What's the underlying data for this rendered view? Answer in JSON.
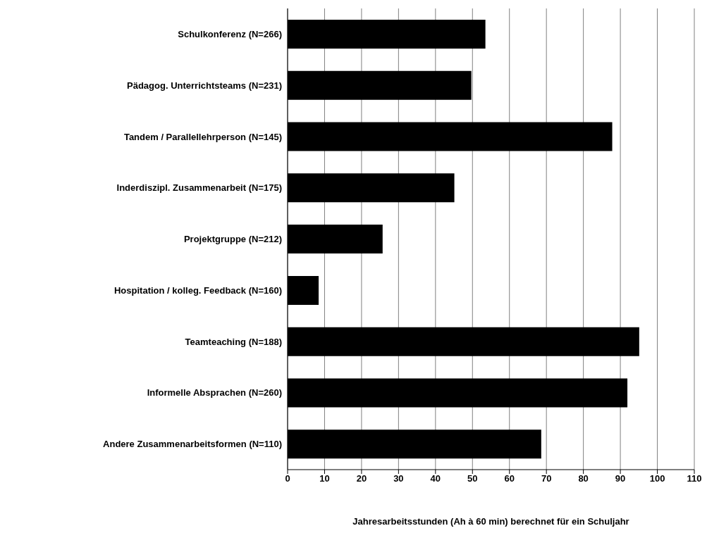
{
  "chart_data": {
    "type": "bar",
    "orientation": "horizontal",
    "xlabel": "Jahresarbeitsstunden (Ah à 60 min) berechnet für ein Schuljahr",
    "categories": [
      "Schulkonferenz (N=266)",
      "Pädagog. Unterrichtsteams (N=231)",
      "Tandem / Parallellehrperson (N=145)",
      "Inderdiszipl. Zusammenarbeit (N=175)",
      "Projektgruppe (N=212)",
      "Hospitation / kolleg. Feedback (N=160)",
      "Teamteaching (N=188)",
      "Informelle Absprachen (N=260)",
      "Andere Zusammenarbeitsformen (N=110)"
    ],
    "values": [
      53.5,
      49.7,
      87.8,
      45.1,
      25.7,
      8.4,
      95.1,
      91.9,
      68.6
    ],
    "color": "#000000",
    "xlim": [
      0,
      110
    ],
    "xticks": [
      0,
      10,
      20,
      30,
      40,
      50,
      60,
      70,
      80,
      90,
      100,
      110
    ],
    "grid": "x",
    "legend": false
  }
}
